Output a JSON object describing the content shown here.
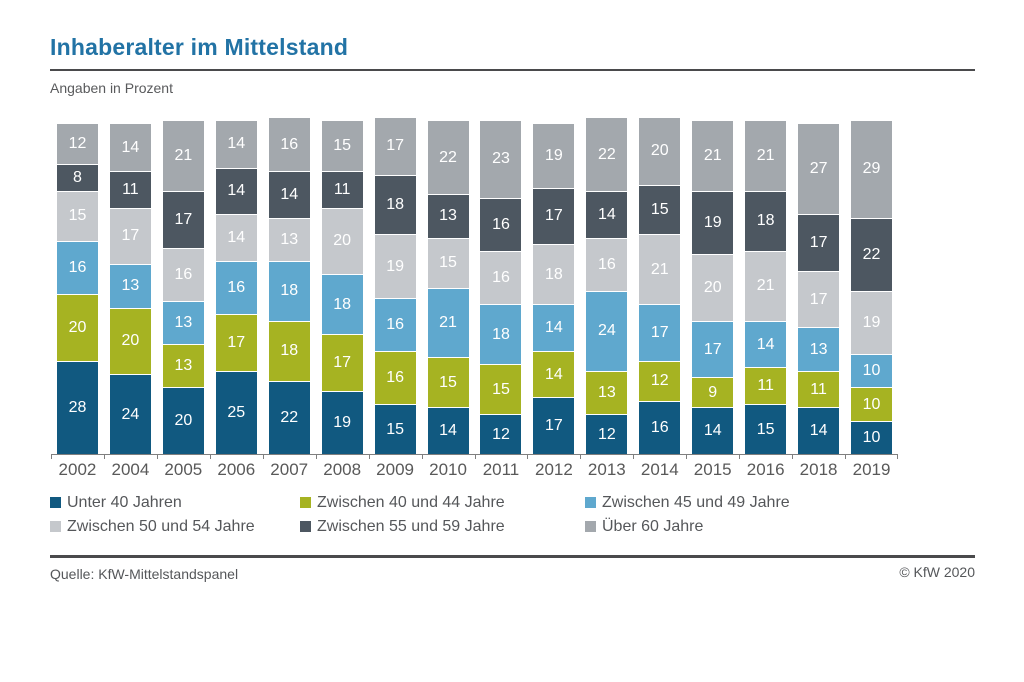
{
  "page": {
    "title": "Inhaberalter im Mittelstand",
    "subtitle": "Angaben in Prozent",
    "source": "Quelle: KfW-Mittelstandspanel",
    "copyright": "© KfW 2020",
    "title_color": "#2273A5"
  },
  "chart_data": {
    "type": "bar",
    "stacked": true,
    "title": "Inhaberalter im Mittelstand",
    "subtitle": "Angaben in Prozent",
    "unit": "Prozent",
    "ylim": [
      0,
      101
    ],
    "grid": false,
    "legend_position": "bottom",
    "value_labels": "inside segments, white",
    "categories": [
      "2002",
      "2004",
      "2005",
      "2006",
      "2007",
      "2008",
      "2009",
      "2010",
      "2011",
      "2012",
      "2013",
      "2014",
      "2015",
      "2016",
      "2018",
      "2019"
    ],
    "series": [
      {
        "name": "Unter 40 Jahren",
        "color": "#115980",
        "values": [
          28,
          24,
          20,
          25,
          22,
          19,
          15,
          14,
          12,
          17,
          12,
          16,
          14,
          15,
          14,
          10
        ]
      },
      {
        "name": "Zwischen 40 und 44 Jahre",
        "color": "#A6B322",
        "values": [
          20,
          20,
          13,
          17,
          18,
          17,
          16,
          15,
          15,
          14,
          13,
          12,
          9,
          11,
          11,
          10
        ]
      },
      {
        "name": "Zwischen 45 und 49 Jahre",
        "color": "#5FA8CE",
        "values": [
          16,
          13,
          13,
          16,
          18,
          18,
          16,
          21,
          18,
          14,
          24,
          17,
          17,
          14,
          13,
          10
        ]
      },
      {
        "name": "Zwischen 50 und 54 Jahre",
        "color": "#C5C8CC",
        "values": [
          15,
          17,
          16,
          14,
          13,
          20,
          19,
          15,
          16,
          18,
          16,
          21,
          20,
          21,
          17,
          19
        ]
      },
      {
        "name": "Zwischen 55 und 59 Jahre",
        "color": "#4D5761",
        "values": [
          8,
          11,
          17,
          14,
          14,
          11,
          18,
          13,
          16,
          17,
          14,
          15,
          19,
          18,
          17,
          22
        ]
      },
      {
        "name": "Über 60 Jahre",
        "color": "#A3A8AD",
        "values": [
          12,
          14,
          21,
          14,
          16,
          15,
          17,
          22,
          23,
          19,
          22,
          20,
          21,
          21,
          27,
          29
        ]
      }
    ]
  }
}
